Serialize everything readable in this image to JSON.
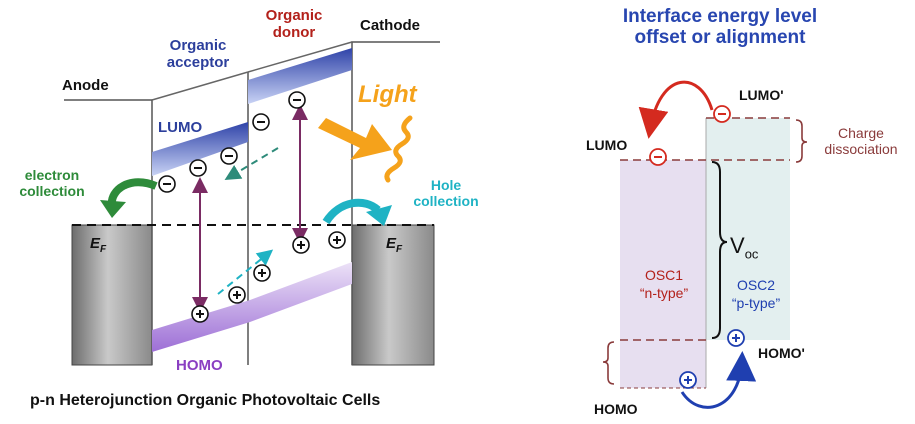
{
  "left_diagram": {
    "anode": "Anode",
    "cathode": "Cathode",
    "organic_acceptor": "Organic\nacceptor",
    "organic_donor": "Organic\ndonor",
    "lumo": "LUMO",
    "homo": "HOMO",
    "light": "Light",
    "electron_collection": "electron\ncollection",
    "hole_collection": "Hole\ncollection",
    "ef": "E",
    "ef_sub": "F",
    "caption": "p-n Heterojunction Organic Photovoltaic Cells"
  },
  "right_diagram": {
    "title": "Interface energy level\noffset or alignment",
    "lumo": "LUMO",
    "lumo_prime": "LUMO'",
    "homo": "HOMO",
    "homo_prime": "HOMO'",
    "charge_dissociation": "Charge\ndissociation",
    "voc": "V",
    "voc_sub": "oc",
    "osc1_name": "OSC1",
    "osc1_type": "“n-type”",
    "osc2_name": "OSC2",
    "osc2_type": "“p-type”"
  },
  "symbols": {
    "electron": "−",
    "hole": "+"
  },
  "colors": {
    "acceptor_blue": "#2c3f9c",
    "donor_red": "#b3211b",
    "lumo_band": "#5a6fd0",
    "homo_band": "#b48de0",
    "light_orange": "#f5a21b",
    "electron_green": "#2e8b3a",
    "hole_cyan": "#1fb3c4",
    "transition_purple": "#7a2b63",
    "title_blue": "#2846b0",
    "dashed_brown": "#8a3b3b",
    "osc1_fill": "#e7dff0",
    "osc2_fill": "#e3efef"
  }
}
